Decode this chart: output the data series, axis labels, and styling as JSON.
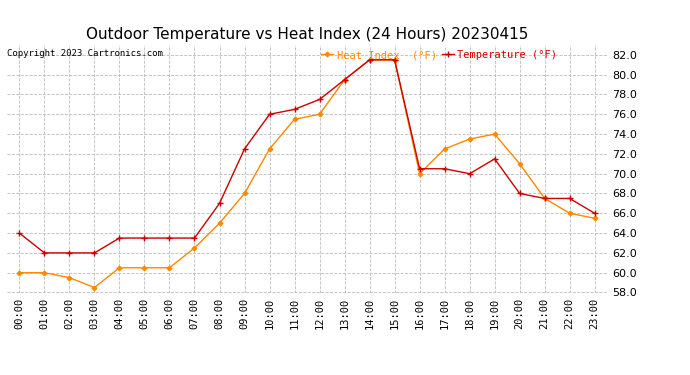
{
  "title": "Outdoor Temperature vs Heat Index (24 Hours) 20230415",
  "copyright": "Copyright 2023 Cartronics.com",
  "legend_heat_index": "Heat Index  (°F)",
  "legend_temperature": "Temperature (°F)",
  "hours": [
    "00:00",
    "01:00",
    "02:00",
    "03:00",
    "04:00",
    "05:00",
    "06:00",
    "07:00",
    "08:00",
    "09:00",
    "10:00",
    "11:00",
    "12:00",
    "13:00",
    "14:00",
    "15:00",
    "16:00",
    "17:00",
    "18:00",
    "19:00",
    "20:00",
    "21:00",
    "22:00",
    "23:00"
  ],
  "temperature": [
    64.0,
    62.0,
    62.0,
    62.0,
    63.5,
    63.5,
    63.5,
    63.5,
    67.0,
    72.5,
    76.0,
    76.5,
    77.5,
    79.5,
    81.5,
    81.5,
    70.5,
    70.5,
    70.0,
    71.5,
    68.0,
    67.5,
    67.5,
    66.0
  ],
  "heat_index": [
    60.0,
    60.0,
    59.5,
    58.5,
    60.5,
    60.5,
    60.5,
    62.5,
    65.0,
    68.0,
    72.5,
    75.5,
    76.0,
    79.5,
    81.5,
    81.5,
    70.0,
    72.5,
    73.5,
    74.0,
    71.0,
    67.5,
    66.0,
    65.5
  ],
  "ylim": [
    58.0,
    83.0
  ],
  "yticks": [
    58.0,
    60.0,
    62.0,
    64.0,
    66.0,
    68.0,
    70.0,
    72.0,
    74.0,
    76.0,
    78.0,
    80.0,
    82.0
  ],
  "temp_color": "#cc0000",
  "heat_color": "#ff8800",
  "background_color": "#ffffff",
  "grid_color": "#bbbbbb",
  "title_fontsize": 11,
  "axis_fontsize": 7.5
}
